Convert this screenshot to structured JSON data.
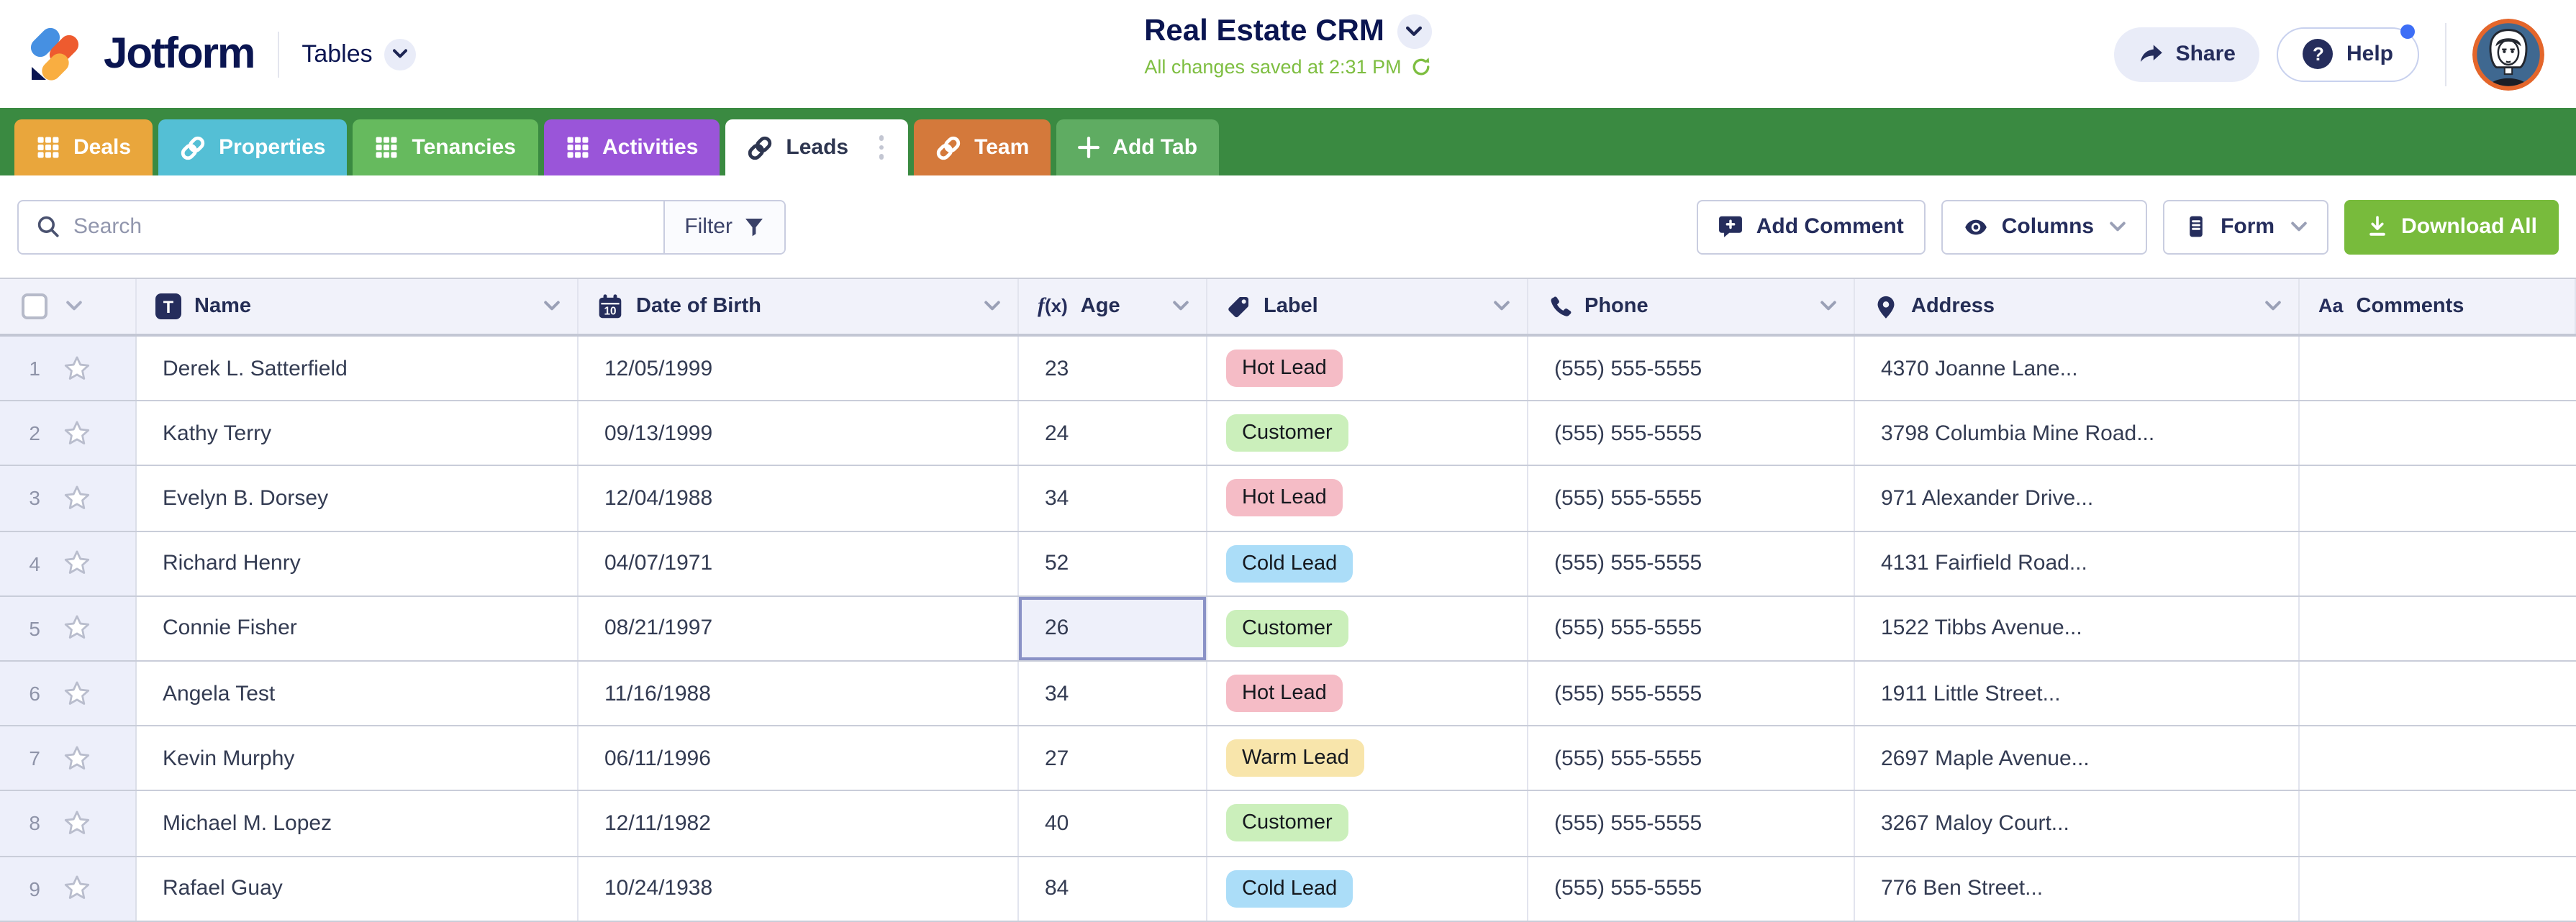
{
  "app": {
    "brand": "Jotform",
    "product": "Tables",
    "title": "Real Estate CRM",
    "saved_status": "All changes saved at 2:31 PM",
    "share_label": "Share",
    "help_label": "Help"
  },
  "tabs": [
    {
      "label": "Deals",
      "icon": "table-grid-icon",
      "color": "#E9A63C",
      "text": "#FFFFFF",
      "active": false
    },
    {
      "label": "Properties",
      "icon": "link-icon",
      "color": "#54BFD5",
      "text": "#FFFFFF",
      "active": false
    },
    {
      "label": "Tenancies",
      "icon": "table-grid-icon",
      "color": "#66BA5E",
      "text": "#FFFFFF",
      "active": false
    },
    {
      "label": "Activities",
      "icon": "table-grid-icon",
      "color": "#9A55D9",
      "text": "#FFFFFF",
      "active": false
    },
    {
      "label": "Leads",
      "icon": "link-icon",
      "color": "#FFFFFF",
      "text": "#2E3650",
      "active": true,
      "menu": true
    },
    {
      "label": "Team",
      "icon": "link-icon",
      "color": "#D4793B",
      "text": "#FFFFFF",
      "active": false
    },
    {
      "label": "Add Tab",
      "icon": "plus-icon",
      "color": "#5FAC62",
      "text": "#FFFFFF",
      "active": false
    }
  ],
  "toolbar": {
    "search_placeholder": "Search",
    "filter_label": "Filter",
    "add_comment_label": "Add Comment",
    "columns_label": "Columns",
    "form_label": "Form",
    "download_label": "Download All"
  },
  "table": {
    "columns": [
      {
        "key": "name",
        "label": "Name",
        "icon": "text-field-icon",
        "chevron": true
      },
      {
        "key": "dob",
        "label": "Date of Birth",
        "icon": "calendar-icon",
        "chevron": true
      },
      {
        "key": "age",
        "label": "Age",
        "icon": "formula-icon",
        "chevron": true
      },
      {
        "key": "label",
        "label": "Label",
        "icon": "tag-icon",
        "chevron": true
      },
      {
        "key": "phone",
        "label": "Phone",
        "icon": "phone-icon",
        "chevron": true
      },
      {
        "key": "address",
        "label": "Address",
        "icon": "map-pin-icon",
        "chevron": true
      },
      {
        "key": "comments",
        "label": "Comments",
        "icon": "aa-icon",
        "chevron": false
      }
    ],
    "badge_colors": {
      "Hot Lead": "#F5BCC6",
      "Customer": "#CBEFBB",
      "Cold Lead": "#ABDDF8",
      "Warm Lead": "#F8E5AB"
    },
    "selected_cell": {
      "row": 5,
      "column": "age"
    },
    "rows": [
      {
        "num": "1",
        "name": "Derek L. Satterfield",
        "dob": "12/05/1999",
        "age": "23",
        "label": "Hot Lead",
        "phone": "(555) 555-5555",
        "address": "4370 Joanne Lane...",
        "comments": ""
      },
      {
        "num": "2",
        "name": "Kathy Terry",
        "dob": "09/13/1999",
        "age": "24",
        "label": "Customer",
        "phone": "(555) 555-5555",
        "address": "3798 Columbia Mine Road...",
        "comments": ""
      },
      {
        "num": "3",
        "name": "Evelyn B. Dorsey",
        "dob": "12/04/1988",
        "age": "34",
        "label": "Hot Lead",
        "phone": "(555) 555-5555",
        "address": "971 Alexander Drive...",
        "comments": ""
      },
      {
        "num": "4",
        "name": "Richard Henry",
        "dob": "04/07/1971",
        "age": "52",
        "label": "Cold Lead",
        "phone": "(555) 555-5555",
        "address": "4131 Fairfield Road...",
        "comments": ""
      },
      {
        "num": "5",
        "name": "Connie Fisher",
        "dob": "08/21/1997",
        "age": "26",
        "label": "Customer",
        "phone": "(555) 555-5555",
        "address": "1522 Tibbs Avenue...",
        "comments": ""
      },
      {
        "num": "6",
        "name": "Angela Test",
        "dob": "11/16/1988",
        "age": "34",
        "label": "Hot Lead",
        "phone": "(555) 555-5555",
        "address": "1911 Little Street...",
        "comments": ""
      },
      {
        "num": "7",
        "name": "Kevin Murphy",
        "dob": "06/11/1996",
        "age": "27",
        "label": "Warm Lead",
        "phone": "(555) 555-5555",
        "address": "2697 Maple Avenue...",
        "comments": ""
      },
      {
        "num": "8",
        "name": "Michael M. Lopez",
        "dob": "12/11/1982",
        "age": "40",
        "label": "Customer",
        "phone": "(555) 555-5555",
        "address": "3267 Maloy Court...",
        "comments": ""
      },
      {
        "num": "9",
        "name": "Rafael Guay",
        "dob": "10/24/1938",
        "age": "84",
        "label": "Cold Lead",
        "phone": "(555) 555-5555",
        "address": "776 Ben Street...",
        "comments": ""
      }
    ]
  },
  "colors": {
    "tab_bar": "#3A8A41",
    "download_button": "#78BB3C",
    "saved_text": "#7EBE41",
    "brand_navy": "#0A1551"
  }
}
